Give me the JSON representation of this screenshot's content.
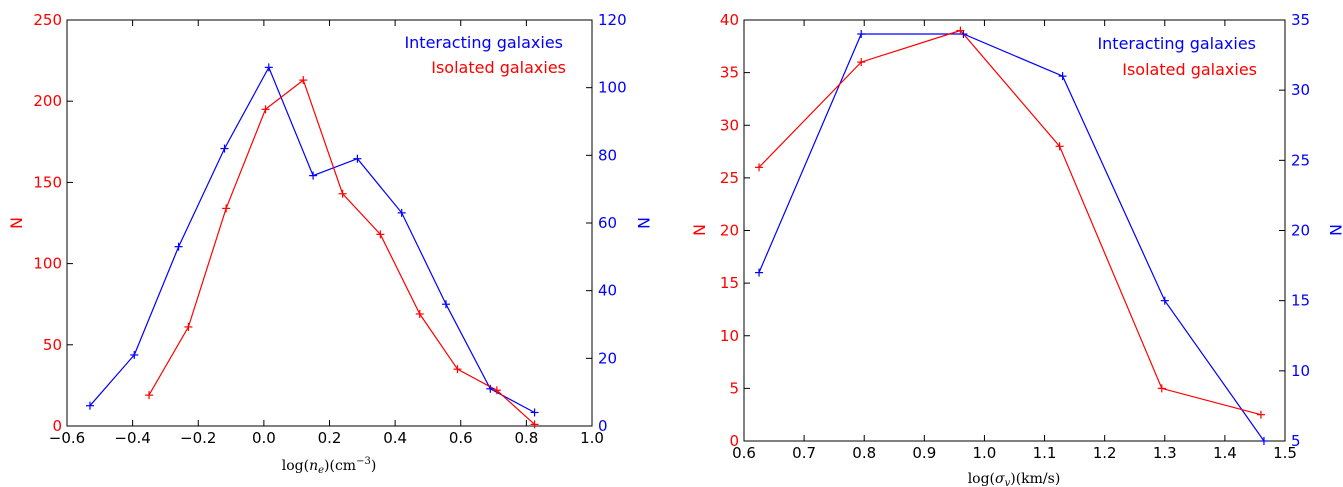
{
  "colors": {
    "interacting": "#0000ff",
    "isolated": "#ff0000"
  },
  "chart_data": [
    {
      "type": "line",
      "xlabel": "log(n_e)(cm^-3)",
      "xlabel_main": "log(",
      "xlabel_var": "n",
      "xlabel_sub": "e",
      "xlabel_tail": ")(cm",
      "xlabel_sup": "−3",
      "xlabel_close": ")",
      "xlim": [
        -0.6,
        1.0
      ],
      "xticks": [
        -0.6,
        -0.4,
        -0.2,
        0.0,
        0.2,
        0.4,
        0.6,
        0.8,
        1.0
      ],
      "xtick_labels": [
        "−0.6",
        "−0.4",
        "−0.2",
        "0.0",
        "0.2",
        "0.4",
        "0.6",
        "0.8",
        "1.0"
      ],
      "ylabel_left": "N",
      "ylim_left": [
        0,
        250
      ],
      "yticks_left": [
        0,
        50,
        100,
        150,
        200,
        250
      ],
      "ylabel_right": "N",
      "ylim_right": [
        0,
        120
      ],
      "yticks_right": [
        0,
        20,
        40,
        60,
        80,
        100,
        120
      ],
      "legend": [
        "Interacting galaxies",
        "Isolated galaxies"
      ],
      "legend_position": "top-right",
      "series": [
        {
          "name": "Interacting galaxies",
          "axis": "right",
          "color": "#0000ff",
          "x": [
            -0.53,
            -0.395,
            -0.26,
            -0.12,
            0.015,
            0.15,
            0.285,
            0.42,
            0.555,
            0.69,
            0.825
          ],
          "y": [
            6,
            21,
            53,
            82,
            106,
            74,
            79,
            63,
            36,
            11,
            4
          ]
        },
        {
          "name": "Isolated galaxies",
          "axis": "left",
          "color": "#ff0000",
          "x": [
            -0.35,
            -0.23,
            -0.115,
            0.005,
            0.12,
            0.24,
            0.355,
            0.475,
            0.59,
            0.71,
            0.825
          ],
          "y": [
            19,
            61,
            134,
            195,
            213,
            143,
            118,
            69,
            35,
            22,
            1
          ]
        }
      ]
    },
    {
      "type": "line",
      "xlabel": "log(σ_v)(km/s)",
      "xlabel_main": "log(",
      "xlabel_var": "σ",
      "xlabel_sub": "v",
      "xlabel_tail": ")(km/s)",
      "xlim": [
        0.6,
        1.5
      ],
      "xticks": [
        0.6,
        0.7,
        0.8,
        0.9,
        1.0,
        1.1,
        1.2,
        1.3,
        1.4,
        1.5
      ],
      "xtick_labels": [
        "0.6",
        "0.7",
        "0.8",
        "0.9",
        "1.0",
        "1.1",
        "1.2",
        "1.3",
        "1.4",
        "1.5"
      ],
      "ylabel_left": "N",
      "ylim_left": [
        0,
        40
      ],
      "yticks_left": [
        0,
        5,
        10,
        15,
        20,
        25,
        30,
        35,
        40
      ],
      "ylabel_right": "N",
      "ylim_right": [
        5,
        35
      ],
      "yticks_right": [
        5,
        10,
        15,
        20,
        25,
        30,
        35
      ],
      "legend": [
        "Interacting galaxies",
        "Isolated galaxies"
      ],
      "legend_position": "top-right",
      "series": [
        {
          "name": "Interacting galaxies",
          "axis": "right",
          "color": "#0000ff",
          "x": [
            0.625,
            0.795,
            0.965,
            1.13,
            1.3,
            1.465
          ],
          "y": [
            17,
            34,
            34,
            31,
            15,
            5
          ]
        },
        {
          "name": "Isolated galaxies",
          "axis": "left",
          "color": "#ff0000",
          "x": [
            0.625,
            0.795,
            0.96,
            1.125,
            1.295,
            1.46
          ],
          "y": [
            26,
            36,
            39,
            28,
            5,
            2.5
          ]
        }
      ]
    }
  ]
}
